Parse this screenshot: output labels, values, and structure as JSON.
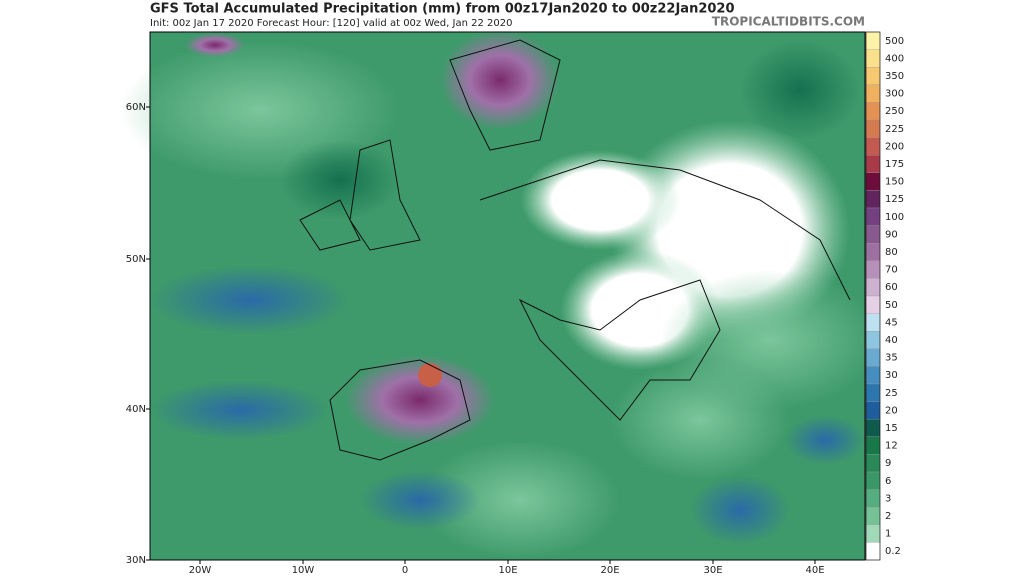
{
  "header": {
    "title": "GFS Total Accumulated Precipitation (mm) from 00z17Jan2020 to 00z22Jan2020",
    "subtitle": "Init: 00z Jan 17 2020   Forecast Hour: [120]   valid at 00z Wed, Jan 22 2020",
    "watermark": "TROPICALTIDBITS.COM"
  },
  "map": {
    "lat_labels": [
      "60N",
      "50N",
      "40N",
      "30N"
    ],
    "lon_labels": [
      "20W",
      "10W",
      "0",
      "10E",
      "20E",
      "30E",
      "40E"
    ]
  },
  "colorbar": {
    "levels": [
      {
        "label": "500",
        "color": "#fdf3a8"
      },
      {
        "label": "400",
        "color": "#fbe08c"
      },
      {
        "label": "350",
        "color": "#f6c872"
      },
      {
        "label": "300",
        "color": "#efb060"
      },
      {
        "label": "250",
        "color": "#e39254"
      },
      {
        "label": "225",
        "color": "#d47a50"
      },
      {
        "label": "200",
        "color": "#c25a52"
      },
      {
        "label": "175",
        "color": "#a83a4a"
      },
      {
        "label": "150",
        "color": "#6e0c3c"
      },
      {
        "label": "125",
        "color": "#62245e"
      },
      {
        "label": "100",
        "color": "#744080"
      },
      {
        "label": "90",
        "color": "#88588f"
      },
      {
        "label": "80",
        "color": "#9e70a2"
      },
      {
        "label": "70",
        "color": "#b690b8"
      },
      {
        "label": "60",
        "color": "#ceb0d0"
      },
      {
        "label": "50",
        "color": "#e6d0e6"
      },
      {
        "label": "45",
        "color": "#bfe0f0"
      },
      {
        "label": "40",
        "color": "#8ec6e0"
      },
      {
        "label": "35",
        "color": "#68aad0"
      },
      {
        "label": "30",
        "color": "#468ec0"
      },
      {
        "label": "25",
        "color": "#2c76ae"
      },
      {
        "label": "20",
        "color": "#1e5e9c"
      },
      {
        "label": "15",
        "color": "#0e5a4c"
      },
      {
        "label": "12",
        "color": "#18784a"
      },
      {
        "label": "9",
        "color": "#288858"
      },
      {
        "label": "6",
        "color": "#3a9868"
      },
      {
        "label": "3",
        "color": "#56ae80"
      },
      {
        "label": "2",
        "color": "#76c296"
      },
      {
        "label": "1",
        "color": "#a0d8b8"
      },
      {
        "label": "0.2",
        "color": "#ffffff"
      }
    ]
  }
}
